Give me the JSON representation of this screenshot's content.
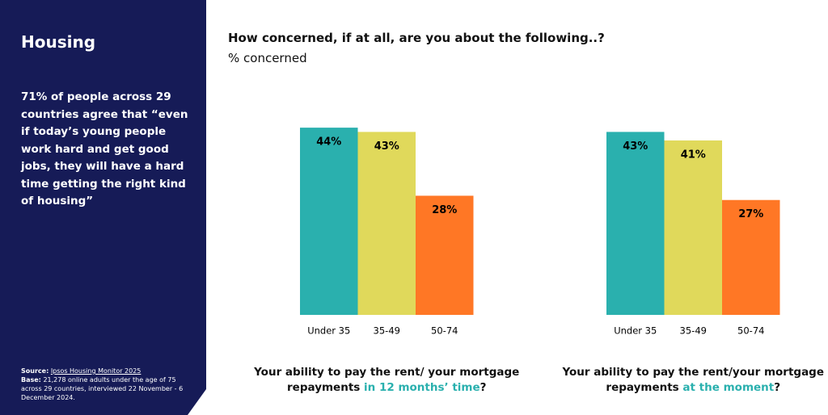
{
  "sidebar": {
    "title": "Housing",
    "statement": "71% of people across 29 countries agree that “even if today’s young people work hard and get good jobs, they will have a hard time getting the right kind of housing”",
    "source_label": "Source:",
    "source": "Ipsos Housing Monitor 2025",
    "base_label": "Base:",
    "base": "21,278 online adults under the age of 75 across 29 countries, interviewed 22 November - 6 December 2024."
  },
  "header": {
    "title": "How concerned, if at all, are you about the following..?",
    "subtitle": "% concerned"
  },
  "chart_data": [
    {
      "type": "bar",
      "categories": [
        "Under 35",
        "35-49",
        "50-74"
      ],
      "values": [
        44,
        43,
        28
      ],
      "value_labels": [
        "44%",
        "43%",
        "28%"
      ],
      "colors": [
        "#2ab0ae",
        "#e0d95b",
        "#ff7725"
      ],
      "caption": {
        "text": "Your ability to pay the rent/ your mortgage repayments ",
        "highlight": "in 12 months’ time",
        "end": "?"
      }
    },
    {
      "type": "bar",
      "categories": [
        "Under 35",
        "35-49",
        "50-74"
      ],
      "values": [
        43,
        41,
        27
      ],
      "value_labels": [
        "43%",
        "41%",
        "27%"
      ],
      "colors": [
        "#2ab0ae",
        "#e0d95b",
        "#ff7725"
      ],
      "caption": {
        "text": "Your ability to pay the rent/your mortgage repayments ",
        "highlight": "at the moment",
        "end": "?"
      }
    }
  ]
}
